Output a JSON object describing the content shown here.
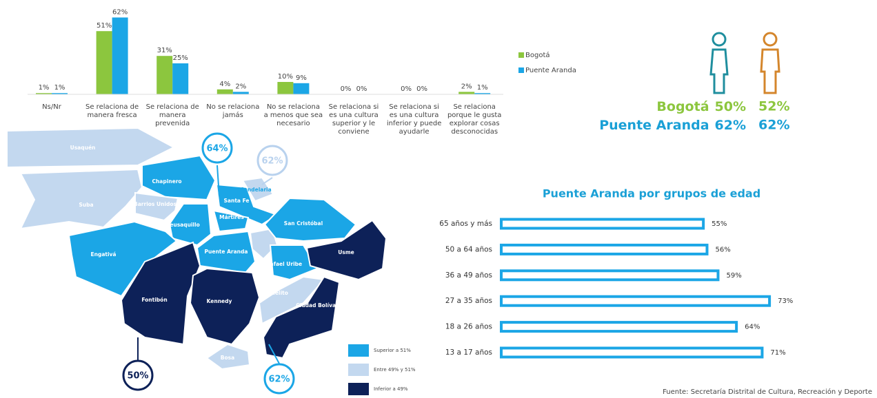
{
  "chart_data": [
    {
      "type": "bar",
      "categories": [
        "Ns/Nr",
        "Se relaciona de manera fresca",
        "Se relaciona de manera prevenida",
        "No se relaciona jamás",
        "No se relaciona a menos que sea necesario",
        "Se relaciona si es una cultura superior y le conviene",
        "Se relaciona si es una cultura inferior y puede ayudarle",
        "Se relaciona porque le gusta explorar cosas desconocidas"
      ],
      "series": [
        {
          "name": "Bogotá",
          "color": "#8cc63e",
          "values": [
            1,
            51,
            31,
            4,
            10,
            0,
            0,
            2
          ],
          "value_labels": [
            "1%",
            "51%",
            "31%",
            "4%",
            "10%",
            "0%",
            "0%",
            "2%"
          ]
        },
        {
          "name": "Puente Aranda",
          "color": "#1ba6e6",
          "values": [
            1,
            62,
            25,
            2,
            9,
            0,
            0,
            1
          ],
          "value_labels": [
            "1%",
            "62%",
            "25%",
            "2%",
            "9%",
            "0%",
            "0%",
            "1%"
          ]
        }
      ]
    },
    {
      "type": "barh",
      "title": "Puente Aranda por grupos de edad",
      "categories": [
        "65 años y más",
        "50 a 64 años",
        "36 a 49 años",
        "27 a 35 años",
        "18 a 26 años",
        "13 a 17 años"
      ],
      "values": [
        55,
        56,
        59,
        73,
        64,
        71
      ],
      "value_labels": [
        "55%",
        "56%",
        "59%",
        "73%",
        "64%",
        "71%"
      ],
      "color": "#1ba6e6"
    }
  ],
  "gender": {
    "rows": [
      {
        "label": "Bogotá",
        "female": "50%",
        "male": "52%",
        "color": "#8cc63e"
      },
      {
        "label": "Puente Aranda",
        "female": "62%",
        "male": "62%",
        "color": "#1aa0d6"
      }
    ]
  },
  "map": {
    "localities": [
      {
        "name": "Usaquén",
        "color": "#c3d8ef"
      },
      {
        "name": "Suba",
        "color": "#c3d8ef"
      },
      {
        "name": "Chapinero",
        "color": "#1ba6e6"
      },
      {
        "name": "Barrios Unidos",
        "color": "#c3d8ef"
      },
      {
        "name": "Teusaquillo",
        "color": "#1ba6e6"
      },
      {
        "name": "Engativá",
        "color": "#1ba6e6"
      },
      {
        "name": "Santa Fe",
        "color": "#1ba6e6"
      },
      {
        "name": "Candelaria",
        "color": "#c3d8ef"
      },
      {
        "name": "Mártires",
        "color": "#1ba6e6"
      },
      {
        "name": "San Cristóbal",
        "color": "#1ba6e6"
      },
      {
        "name": "Puente Aranda",
        "color": "#1ba6e6"
      },
      {
        "name": "Rafael Uribe",
        "color": "#1ba6e6"
      },
      {
        "name": "Usme",
        "color": "#0d2158"
      },
      {
        "name": "Fontibón",
        "color": "#0d2158"
      },
      {
        "name": "Kennedy",
        "color": "#0d2158"
      },
      {
        "name": "Tunjuelito",
        "color": "#c3d8ef"
      },
      {
        "name": "Ciudad Bolívar",
        "color": "#0d2158"
      },
      {
        "name": "Bosa",
        "color": "#c3d8ef"
      }
    ],
    "callouts": [
      {
        "label": "64%",
        "color": "#1ba6e6"
      },
      {
        "label": "62%",
        "color": "#b9d2ee"
      },
      {
        "label": "50%",
        "color": "#0d2158"
      },
      {
        "label": "62%",
        "color": "#1ba6e6"
      }
    ],
    "legend": [
      {
        "label": "Superior a 51%",
        "color": "#1ba6e6"
      },
      {
        "label": "Entre 49% y 51%",
        "color": "#c3d8ef"
      },
      {
        "label": "Inferior a 49%",
        "color": "#0d2158"
      }
    ]
  },
  "source": "Fuente: Secretaría Distrital de Cultura, Recreación y Deporte"
}
